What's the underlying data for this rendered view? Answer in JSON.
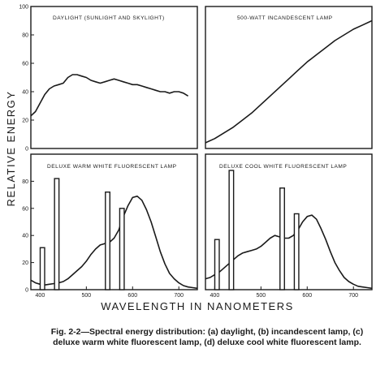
{
  "figure": {
    "ylabel": "RELATIVE ENERGY",
    "xlabel": "WAVELENGTH IN NANOMETERS",
    "caption": "Fig. 2-2—Spectral energy distribution: (a) daylight, (b) incandescent lamp, (c) deluxe warm white fluorescent lamp, (d) deluxe cool white fluorescent lamp."
  },
  "chart_data": [
    {
      "type": "line",
      "title": "DAYLIGHT (SUNLIGHT AND SKYLIGHT)",
      "xlim": [
        380,
        740
      ],
      "ylim": [
        0,
        100
      ],
      "yticks": [
        0,
        20,
        40,
        60,
        80,
        100
      ],
      "ytick_labels": [
        "0",
        "20",
        "40",
        "60",
        "80",
        "100"
      ],
      "xticks": [],
      "xtick_labels": [],
      "series": [
        {
          "x": [
            380,
            390,
            400,
            410,
            420,
            430,
            440,
            450,
            460,
            470,
            480,
            490,
            500,
            510,
            520,
            530,
            540,
            550,
            560,
            570,
            580,
            590,
            600,
            610,
            620,
            630,
            640,
            650,
            660,
            670,
            680,
            690,
            700,
            710,
            720
          ],
          "y": [
            23,
            26,
            32,
            38,
            42,
            44,
            45,
            46,
            50,
            52,
            52,
            51,
            50,
            48,
            47,
            46,
            47,
            48,
            49,
            48,
            47,
            46,
            45,
            45,
            44,
            43,
            42,
            41,
            40,
            40,
            39,
            40,
            40,
            39,
            37
          ]
        }
      ],
      "spikes": []
    },
    {
      "type": "line",
      "title": "500-WATT INCANDESCENT LAMP",
      "xlim": [
        380,
        740
      ],
      "ylim": [
        0,
        100
      ],
      "yticks": [],
      "ytick_labels": [],
      "xticks": [],
      "xtick_labels": [],
      "series": [
        {
          "x": [
            380,
            400,
            420,
            440,
            460,
            480,
            500,
            520,
            540,
            560,
            580,
            600,
            620,
            640,
            660,
            680,
            700,
            720,
            740
          ],
          "y": [
            4,
            7,
            11,
            15,
            20,
            25,
            31,
            37,
            43,
            49,
            55,
            61,
            66,
            71,
            76,
            80,
            84,
            87,
            90
          ]
        }
      ],
      "spikes": []
    },
    {
      "type": "line",
      "title": "DELUXE WARM WHITE FLUORESCENT LAMP",
      "xlim": [
        380,
        740
      ],
      "ylim": [
        0,
        100
      ],
      "yticks": [
        0,
        20,
        40,
        60,
        80
      ],
      "ytick_labels": [
        "0",
        "20",
        "40",
        "60",
        "80"
      ],
      "xticks": [
        400,
        500,
        600,
        700
      ],
      "xtick_labels": [
        "400",
        "500",
        "600",
        "700"
      ],
      "series": [
        {
          "x": [
            380,
            390,
            400,
            410,
            420,
            430,
            440,
            450,
            460,
            470,
            480,
            490,
            500,
            510,
            520,
            530,
            540,
            550,
            560,
            570,
            580,
            590,
            600,
            610,
            620,
            630,
            640,
            650,
            660,
            670,
            680,
            690,
            700,
            710,
            720,
            730,
            740
          ],
          "y": [
            7,
            5,
            4,
            3.5,
            4,
            4.5,
            5,
            6,
            8,
            11,
            14,
            17,
            21,
            26,
            30,
            33,
            34,
            35,
            38,
            44,
            54,
            62,
            68,
            69,
            66,
            59,
            50,
            39,
            28,
            19,
            12,
            8,
            5,
            3,
            2,
            1.5,
            1
          ]
        }
      ],
      "spikes": [
        {
          "x": 405,
          "y": 31
        },
        {
          "x": 436,
          "y": 82
        },
        {
          "x": 546,
          "y": 72
        },
        {
          "x": 577,
          "y": 60
        }
      ]
    },
    {
      "type": "line",
      "title": "DELUXE COOL WHITE FLUORESCENT LAMP",
      "xlim": [
        380,
        740
      ],
      "ylim": [
        0,
        100
      ],
      "yticks": [],
      "ytick_labels": [],
      "xticks": [
        400,
        500,
        600,
        700
      ],
      "xtick_labels": [
        "400",
        "500",
        "600",
        "700"
      ],
      "series": [
        {
          "x": [
            380,
            390,
            400,
            410,
            420,
            430,
            440,
            450,
            460,
            470,
            480,
            490,
            500,
            510,
            520,
            530,
            540,
            550,
            560,
            570,
            580,
            590,
            600,
            610,
            620,
            630,
            640,
            650,
            660,
            670,
            680,
            690,
            700,
            710,
            720,
            730,
            740
          ],
          "y": [
            8,
            9,
            11,
            13,
            16,
            19,
            22,
            25,
            27,
            28,
            29,
            30,
            32,
            35,
            38,
            40,
            39,
            38,
            38,
            40,
            44,
            50,
            54,
            55,
            52,
            45,
            37,
            28,
            20,
            14,
            9,
            6,
            4,
            2.5,
            2,
            1.5,
            1
          ]
        }
      ],
      "spikes": [
        {
          "x": 405,
          "y": 37
        },
        {
          "x": 436,
          "y": 88
        },
        {
          "x": 546,
          "y": 75
        },
        {
          "x": 577,
          "y": 56
        }
      ]
    }
  ]
}
